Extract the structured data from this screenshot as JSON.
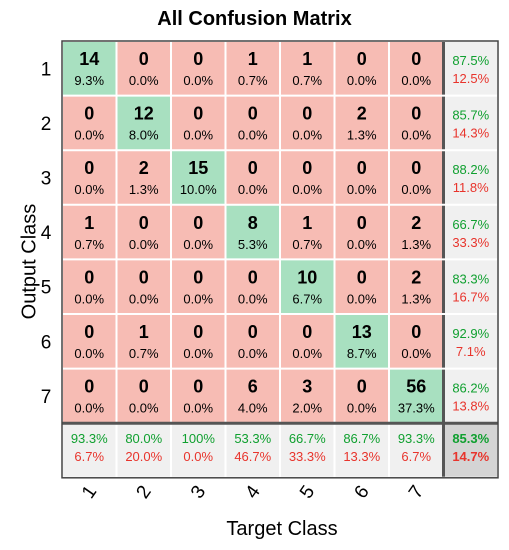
{
  "chart_data": {
    "type": "heatmap",
    "title": "All Confusion Matrix",
    "xlabel": "Target Class",
    "ylabel": "Output Class",
    "classes": [
      "1",
      "2",
      "3",
      "4",
      "5",
      "6",
      "7"
    ],
    "counts": [
      [
        14,
        0,
        0,
        1,
        1,
        0,
        0
      ],
      [
        0,
        12,
        0,
        0,
        0,
        2,
        0
      ],
      [
        0,
        2,
        15,
        0,
        0,
        0,
        0
      ],
      [
        1,
        0,
        0,
        8,
        1,
        0,
        2
      ],
      [
        0,
        0,
        0,
        0,
        10,
        0,
        2
      ],
      [
        0,
        1,
        0,
        0,
        0,
        13,
        0
      ],
      [
        0,
        0,
        0,
        6,
        3,
        0,
        56
      ]
    ],
    "percents": [
      [
        "9.3%",
        "0.0%",
        "0.0%",
        "0.7%",
        "0.7%",
        "0.0%",
        "0.0%"
      ],
      [
        "0.0%",
        "8.0%",
        "0.0%",
        "0.0%",
        "0.0%",
        "1.3%",
        "0.0%"
      ],
      [
        "0.0%",
        "1.3%",
        "10.0%",
        "0.0%",
        "0.0%",
        "0.0%",
        "0.0%"
      ],
      [
        "0.7%",
        "0.0%",
        "0.0%",
        "5.3%",
        "0.7%",
        "0.0%",
        "1.3%"
      ],
      [
        "0.0%",
        "0.0%",
        "0.0%",
        "0.0%",
        "6.7%",
        "0.0%",
        "1.3%"
      ],
      [
        "0.0%",
        "0.7%",
        "0.0%",
        "0.0%",
        "0.0%",
        "8.7%",
        "0.0%"
      ],
      [
        "0.0%",
        "0.0%",
        "0.0%",
        "4.0%",
        "2.0%",
        "0.0%",
        "37.3%"
      ]
    ],
    "row_summary": [
      [
        "87.5%",
        "12.5%"
      ],
      [
        "85.7%",
        "14.3%"
      ],
      [
        "88.2%",
        "11.8%"
      ],
      [
        "66.7%",
        "33.3%"
      ],
      [
        "83.3%",
        "16.7%"
      ],
      [
        "92.9%",
        "7.1%"
      ],
      [
        "86.2%",
        "13.8%"
      ]
    ],
    "col_summary": [
      [
        "93.3%",
        "6.7%"
      ],
      [
        "80.0%",
        "20.0%"
      ],
      [
        "100%",
        "0.0%"
      ],
      [
        "53.3%",
        "46.7%"
      ],
      [
        "66.7%",
        "33.3%"
      ],
      [
        "86.7%",
        "13.3%"
      ],
      [
        "93.3%",
        "6.7%"
      ]
    ],
    "overall": [
      "85.3%",
      "14.7%"
    ],
    "colors": {
      "correct": "#a8e0c0",
      "incorrect": "#f7bcb4",
      "summary": "#f0f0f0",
      "overall": "#d4d4d4",
      "accuracy_text": "#10a030",
      "error_text": "#e8342c"
    }
  }
}
